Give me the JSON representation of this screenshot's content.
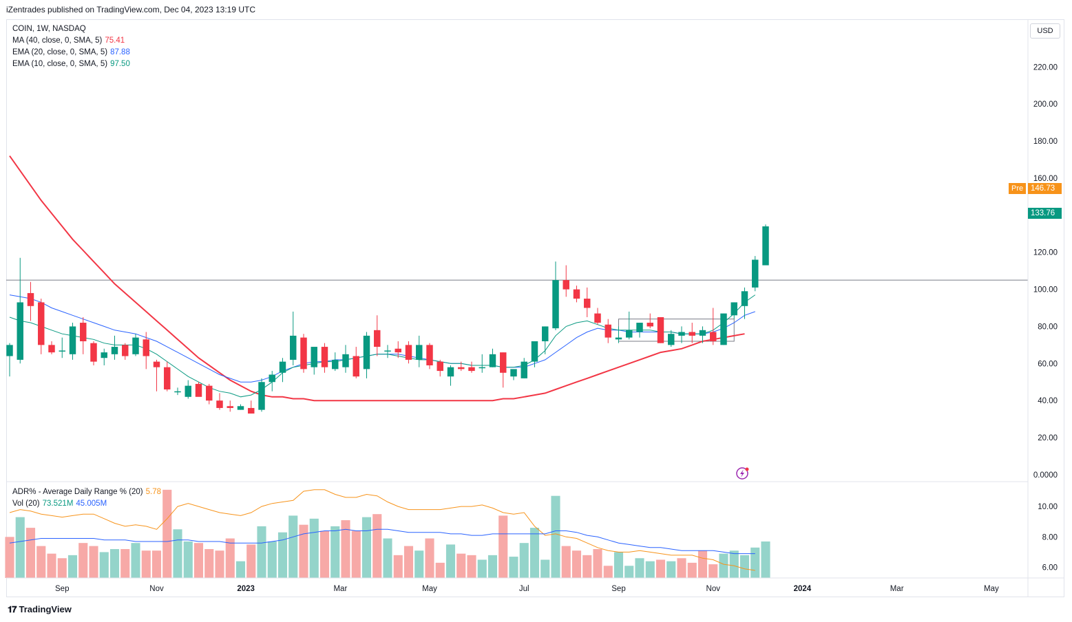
{
  "header": {
    "credit": "iZentrades published on TradingView.com, Dec 04, 2023 13:19 UTC"
  },
  "legend": {
    "symbol": "COIN, 1W, NASDAQ",
    "ma40": {
      "label": "MA (40, close, 0, SMA, 5)",
      "value": "75.41",
      "color": "#f23645"
    },
    "ema20": {
      "label": "EMA (20, close, 0, SMA, 5)",
      "value": "87.88",
      "color": "#2962ff"
    },
    "ema10": {
      "label": "EMA (10, close, 0, SMA, 5)",
      "value": "97.50",
      "color": "#089981"
    },
    "adr": {
      "label": "ADR% - Average Daily Range % (20)",
      "value": "5.78",
      "color": "#f7931a"
    },
    "vol": {
      "label": "Vol (20)",
      "value1": "73.521M",
      "value2": "45.005M",
      "color1": "#089981",
      "color2": "#2962ff"
    }
  },
  "price_axis": {
    "currency": "USD",
    "pre_label": "Pre",
    "pre_price": "146.73",
    "last_price": "133.76",
    "last_price_color": "#089981",
    "pre_color": "#f7931a"
  },
  "footer": {
    "brand": "TradingView"
  },
  "chart_data": [
    {
      "type": "candlestick",
      "title": "COIN, 1W, NASDAQ",
      "y_ticks": [
        "220.00",
        "200.00",
        "180.00",
        "160.00",
        "140.00",
        "120.00",
        "100.00",
        "80.00",
        "60.00",
        "40.00",
        "20.00",
        "0.0000"
      ],
      "ylim": [
        -3,
        245
      ],
      "x_labels": [
        {
          "label": "Sep",
          "week": 5
        },
        {
          "label": "Nov",
          "week": 14
        },
        {
          "label": "2023",
          "week": 22.5
        },
        {
          "label": "Mar",
          "week": 31.5
        },
        {
          "label": "May",
          "week": 40
        },
        {
          "label": "Jul",
          "week": 49
        },
        {
          "label": "Sep",
          "week": 58
        },
        {
          "label": "Nov",
          "week": 67
        },
        {
          "label": "2024",
          "week": 75.5
        },
        {
          "label": "Mar",
          "week": 84.5
        },
        {
          "label": "May",
          "week": 93.5
        }
      ],
      "candles": [
        [
          64,
          71,
          53,
          70
        ],
        [
          62,
          117,
          60,
          93
        ],
        [
          98,
          104,
          83,
          91
        ],
        [
          93,
          95,
          65,
          70
        ],
        [
          70,
          72,
          65,
          66
        ],
        [
          67,
          74,
          63,
          67
        ],
        [
          65,
          82,
          62,
          80
        ],
        [
          82,
          85,
          65,
          72
        ],
        [
          71,
          72,
          59,
          61
        ],
        [
          63,
          68,
          59,
          66
        ],
        [
          65,
          75,
          62,
          69
        ],
        [
          70,
          71,
          62,
          64
        ],
        [
          65,
          76,
          64,
          74
        ],
        [
          73,
          77,
          57,
          64
        ],
        [
          61,
          62,
          45,
          58
        ],
        [
          58,
          61,
          45,
          46
        ],
        [
          45,
          47,
          43,
          45
        ],
        [
          42,
          51,
          41,
          48
        ],
        [
          49,
          50,
          43,
          42
        ],
        [
          48,
          49,
          38,
          40
        ],
        [
          40,
          44,
          35,
          36
        ],
        [
          37,
          40,
          34,
          36
        ],
        [
          35,
          38,
          35,
          37
        ],
        [
          36,
          40,
          33,
          33
        ],
        [
          35,
          52,
          34,
          50
        ],
        [
          50,
          56,
          45,
          54
        ],
        [
          55,
          63,
          50,
          61
        ],
        [
          62,
          88,
          59,
          75
        ],
        [
          74,
          76,
          55,
          57
        ],
        [
          58,
          68,
          54,
          69
        ],
        [
          69,
          71,
          55,
          58
        ],
        [
          57,
          66,
          56,
          62
        ],
        [
          58,
          70,
          55,
          65
        ],
        [
          64,
          69,
          52,
          53
        ],
        [
          57,
          77,
          52,
          75
        ],
        [
          78,
          86,
          64,
          69
        ],
        [
          67,
          70,
          63,
          67
        ],
        [
          68,
          72,
          63,
          66
        ],
        [
          70,
          72,
          60,
          62
        ],
        [
          62,
          75,
          58,
          70
        ],
        [
          70,
          71,
          57,
          59
        ],
        [
          61,
          62,
          53,
          56
        ],
        [
          53,
          59,
          48,
          58
        ],
        [
          58,
          61,
          56,
          57
        ],
        [
          58,
          61,
          55,
          56
        ],
        [
          58,
          65,
          55,
          58
        ],
        [
          58,
          68,
          58,
          65
        ],
        [
          66,
          66,
          47,
          55
        ],
        [
          53,
          56,
          51,
          57
        ],
        [
          52,
          63,
          52,
          61
        ],
        [
          61,
          72,
          58,
          72
        ],
        [
          72,
          80,
          65,
          80
        ],
        [
          79,
          115,
          78,
          105
        ],
        [
          105,
          113,
          96,
          100
        ],
        [
          100,
          102,
          93,
          95
        ],
        [
          95,
          101,
          85,
          90
        ],
        [
          87,
          90,
          81,
          82
        ],
        [
          81,
          84,
          71,
          74
        ],
        [
          73,
          80,
          71,
          74
        ],
        [
          74,
          88,
          73,
          78
        ],
        [
          77,
          82,
          74,
          82
        ],
        [
          82,
          87,
          79,
          80
        ],
        [
          85,
          85,
          71,
          71
        ],
        [
          70,
          78,
          69,
          76
        ],
        [
          75,
          80,
          71,
          77
        ],
        [
          77,
          82,
          71,
          75
        ],
        [
          75,
          80,
          71,
          78
        ],
        [
          77,
          90,
          70,
          72
        ],
        [
          70,
          87,
          70,
          87
        ],
        [
          86,
          93,
          84,
          93
        ],
        [
          91,
          101,
          84,
          99
        ],
        [
          101,
          118,
          99,
          116
        ],
        [
          113,
          135,
          113,
          134
        ]
      ],
      "series": [
        {
          "name": "MA 40",
          "color": "#f23645",
          "values": [
            172,
            164,
            156,
            148,
            141,
            134,
            127,
            121,
            115,
            109,
            103,
            98,
            93,
            88,
            83,
            78,
            73,
            68,
            63,
            59,
            55,
            51,
            48,
            45,
            43,
            42,
            42,
            41,
            41,
            40,
            40,
            40,
            40,
            40,
            40,
            40,
            40,
            40,
            40,
            40,
            40,
            40,
            40,
            40,
            40,
            40,
            40,
            41,
            41,
            42,
            43,
            44,
            46,
            48,
            50,
            52,
            54,
            56,
            58,
            60,
            62,
            64,
            66,
            67,
            68,
            70,
            72,
            73,
            74,
            75,
            76
          ]
        },
        {
          "name": "EMA 20",
          "color": "#2962ff",
          "values": [
            97,
            96,
            95,
            93,
            90,
            88,
            86,
            84,
            82,
            80,
            78,
            77,
            76,
            74,
            72,
            69,
            66,
            63,
            60,
            57,
            54,
            52,
            50,
            50,
            51,
            53,
            56,
            58,
            60,
            61,
            61,
            62,
            62,
            63,
            64,
            65,
            65,
            65,
            64,
            63,
            62,
            61,
            60,
            60,
            59,
            59,
            59,
            58,
            58,
            58,
            60,
            62,
            66,
            70,
            74,
            77,
            79,
            78,
            78,
            77,
            77,
            77,
            77,
            77,
            76,
            76,
            76,
            77,
            79,
            82,
            86,
            88
          ]
        },
        {
          "name": "EMA 10",
          "color": "#089981",
          "values": [
            85,
            83,
            82,
            80,
            78,
            76,
            75,
            74,
            73,
            71,
            70,
            70,
            70,
            68,
            65,
            61,
            57,
            53,
            50,
            47,
            45,
            44,
            42,
            43,
            46,
            50,
            55,
            58,
            59,
            60,
            61,
            61,
            62,
            63,
            64,
            65,
            65,
            64,
            63,
            62,
            62,
            61,
            60,
            60,
            59,
            59,
            59,
            58,
            58,
            59,
            62,
            67,
            75,
            80,
            82,
            83,
            81,
            79,
            78,
            78,
            78,
            78,
            77,
            77,
            76,
            76,
            76,
            78,
            82,
            87,
            93,
            97
          ]
        }
      ],
      "horizontal_line": 105,
      "consolidation_box": {
        "week_start": 58,
        "week_end": 69,
        "top": 84,
        "bottom": 72
      }
    },
    {
      "type": "bar",
      "title": "ADR% - Average Daily Range % (20) / Vol (20)",
      "y_ticks": [
        "10.00",
        "8.00",
        "6.00"
      ],
      "ylim": [
        5.3,
        11.5
      ],
      "volume_direction": [
        "down",
        "up",
        "down",
        "down",
        "down",
        "down",
        "up",
        "down",
        "down",
        "up",
        "up",
        "down",
        "up",
        "down",
        "down",
        "down",
        "up",
        "up",
        "down",
        "down",
        "down",
        "down",
        "up",
        "down",
        "up",
        "up",
        "up",
        "up",
        "down",
        "up",
        "down",
        "up",
        "down",
        "down",
        "up",
        "down",
        "up",
        "down",
        "down",
        "up",
        "down",
        "down",
        "up",
        "down",
        "down",
        "up",
        "up",
        "down",
        "up",
        "up",
        "up",
        "up",
        "up",
        "down",
        "down",
        "down",
        "down",
        "down",
        "up",
        "up",
        "up",
        "up",
        "down",
        "up",
        "down",
        "down",
        "down",
        "down",
        "up",
        "up",
        "up",
        "up",
        "up"
      ],
      "volume_values": [
        8.0,
        9.3,
        8.6,
        7.4,
        6.9,
        6.6,
        6.8,
        7.6,
        7.4,
        7.0,
        7.2,
        7.2,
        7.6,
        7.1,
        7.1,
        11.1,
        8.5,
        7.7,
        7.6,
        7.2,
        7.1,
        7.9,
        6.4,
        7.5,
        8.7,
        7.7,
        8.3,
        9.4,
        8.8,
        9.2,
        8.4,
        8.7,
        9.1,
        8.4,
        9.3,
        9.5,
        7.9,
        6.8,
        7.4,
        7.1,
        7.9,
        6.3,
        7.5,
        6.9,
        6.8,
        6.5,
        6.8,
        9.4,
        6.7,
        7.6,
        8.6,
        6.5,
        10.7,
        7.4,
        7.1,
        6.8,
        7.2,
        6.1,
        7.0,
        6.1,
        6.6,
        6.4,
        6.5,
        6.4,
        6.6,
        6.3,
        7.1,
        6.2,
        6.9,
        7.1,
        6.8,
        7.3,
        7.7
      ],
      "series": [
        {
          "name": "ADR%",
          "color": "#f7931a",
          "values": [
            9.6,
            9.8,
            9.7,
            9.5,
            9.4,
            9.3,
            9.4,
            9.5,
            9.5,
            9.2,
            8.9,
            8.7,
            8.8,
            8.7,
            8.5,
            9.2,
            10.0,
            10.2,
            10.0,
            9.8,
            9.6,
            9.5,
            9.4,
            9.6,
            10.0,
            10.2,
            10.3,
            10.4,
            11.0,
            11.1,
            11.1,
            10.8,
            10.6,
            10.6,
            10.8,
            10.7,
            10.3,
            10.0,
            9.8,
            9.8,
            9.8,
            9.8,
            9.9,
            10.0,
            10.0,
            10.1,
            9.9,
            9.6,
            9.5,
            9.6,
            8.7,
            8.1,
            8.2,
            8.0,
            7.9,
            7.6,
            7.3,
            7.1,
            7.0,
            7.0,
            7.1,
            7.0,
            6.9,
            6.8,
            6.8,
            6.8,
            6.6,
            6.5,
            6.2,
            6.1,
            5.9,
            5.8
          ]
        },
        {
          "name": "Vol MA 20",
          "color": "#2962ff",
          "values": [
            7.6,
            7.7,
            7.8,
            7.9,
            7.9,
            7.9,
            7.9,
            7.9,
            7.9,
            7.8,
            7.8,
            7.8,
            7.7,
            7.7,
            7.7,
            7.7,
            7.8,
            7.8,
            7.7,
            7.7,
            7.7,
            7.6,
            7.6,
            7.6,
            7.6,
            7.7,
            7.8,
            8.0,
            8.2,
            8.3,
            8.4,
            8.4,
            8.5,
            8.4,
            8.4,
            8.5,
            8.5,
            8.4,
            8.3,
            8.3,
            8.3,
            8.3,
            8.2,
            8.2,
            8.1,
            8.1,
            8.2,
            8.2,
            8.2,
            8.2,
            8.2,
            8.2,
            8.4,
            8.4,
            8.3,
            8.1,
            8.0,
            7.8,
            7.6,
            7.5,
            7.4,
            7.3,
            7.3,
            7.2,
            7.1,
            7.1,
            7.1,
            7.1,
            7.0,
            6.9,
            6.9,
            6.9
          ]
        }
      ]
    }
  ]
}
